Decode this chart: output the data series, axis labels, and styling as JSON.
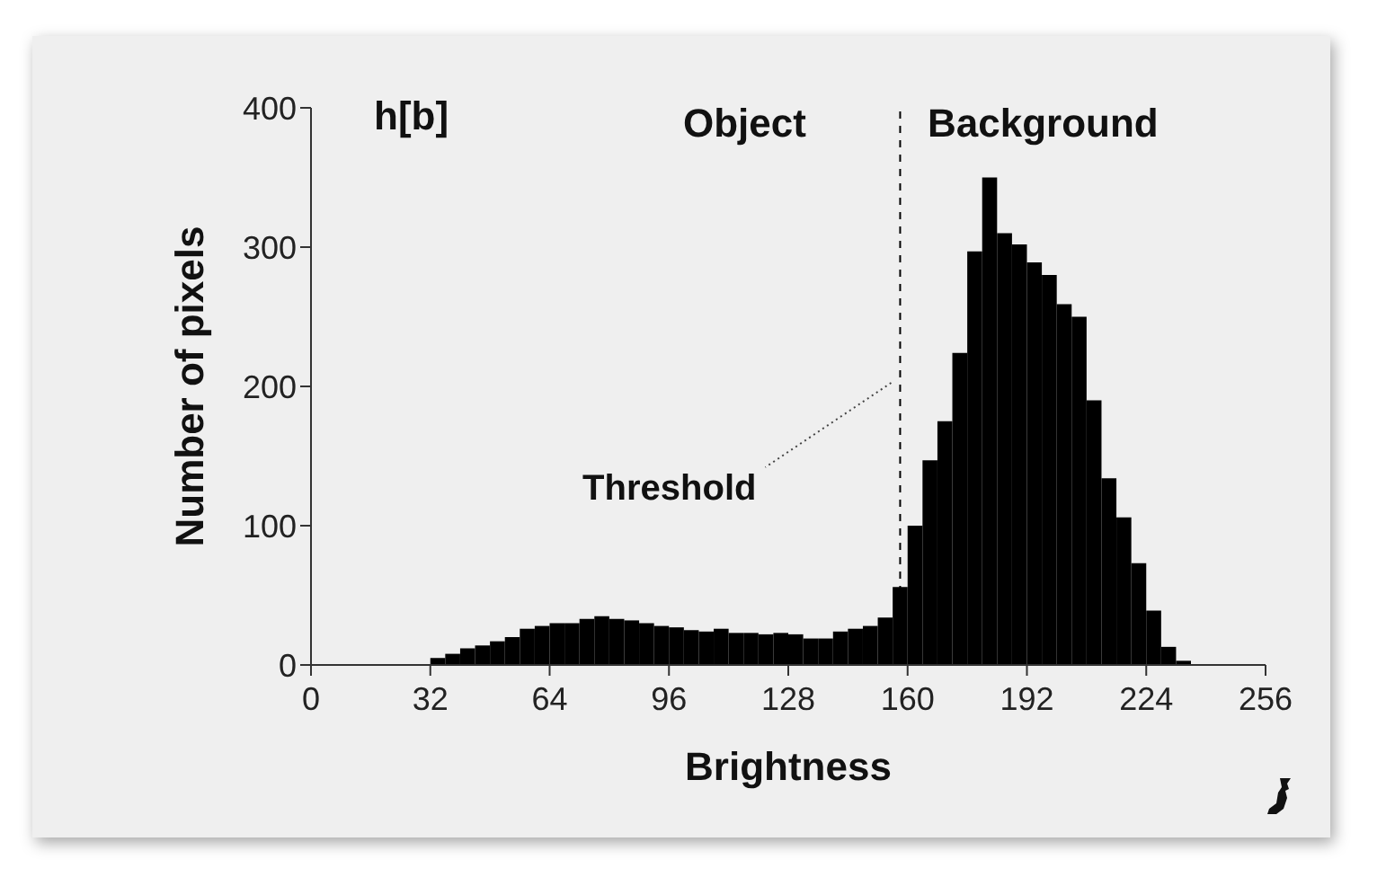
{
  "chart_data": {
    "type": "histogram",
    "xlabel": "Brightness",
    "ylabel": "Number of pixels",
    "bins": [
      32,
      36,
      40,
      44,
      48,
      52,
      56,
      60,
      64,
      68,
      72,
      76,
      80,
      84,
      88,
      92,
      96,
      100,
      104,
      108,
      112,
      116,
      120,
      124,
      128,
      132,
      136,
      140,
      144,
      148,
      152,
      156,
      160,
      164,
      168,
      172,
      176,
      180,
      184,
      188,
      192,
      196,
      200,
      204,
      208,
      212,
      216,
      220,
      224,
      228,
      232,
      236
    ],
    "values": [
      5,
      8,
      12,
      14,
      17,
      20,
      26,
      28,
      30,
      30,
      33,
      35,
      33,
      32,
      30,
      28,
      27,
      25,
      24,
      26,
      23,
      23,
      22,
      23,
      22,
      19,
      19,
      24,
      26,
      28,
      34,
      56,
      100,
      147,
      175,
      224,
      297,
      350,
      310,
      302,
      289,
      280,
      259,
      250,
      190,
      134,
      106,
      73,
      39,
      13,
      3
    ],
    "color": "#000000",
    "xlim": [
      0,
      256
    ],
    "xticks": [
      0,
      32,
      64,
      96,
      128,
      160,
      192,
      224,
      256
    ],
    "ylim": [
      0,
      400
    ],
    "yticks": [
      0,
      100,
      200,
      300,
      400
    ],
    "grid": false,
    "ref_lines": [
      {
        "axis": "x",
        "value": 158,
        "label": "Threshold",
        "line_style": "dashed",
        "color": "#000000"
      }
    ],
    "annotations": [
      "h[b]",
      "Object",
      "Background"
    ]
  }
}
